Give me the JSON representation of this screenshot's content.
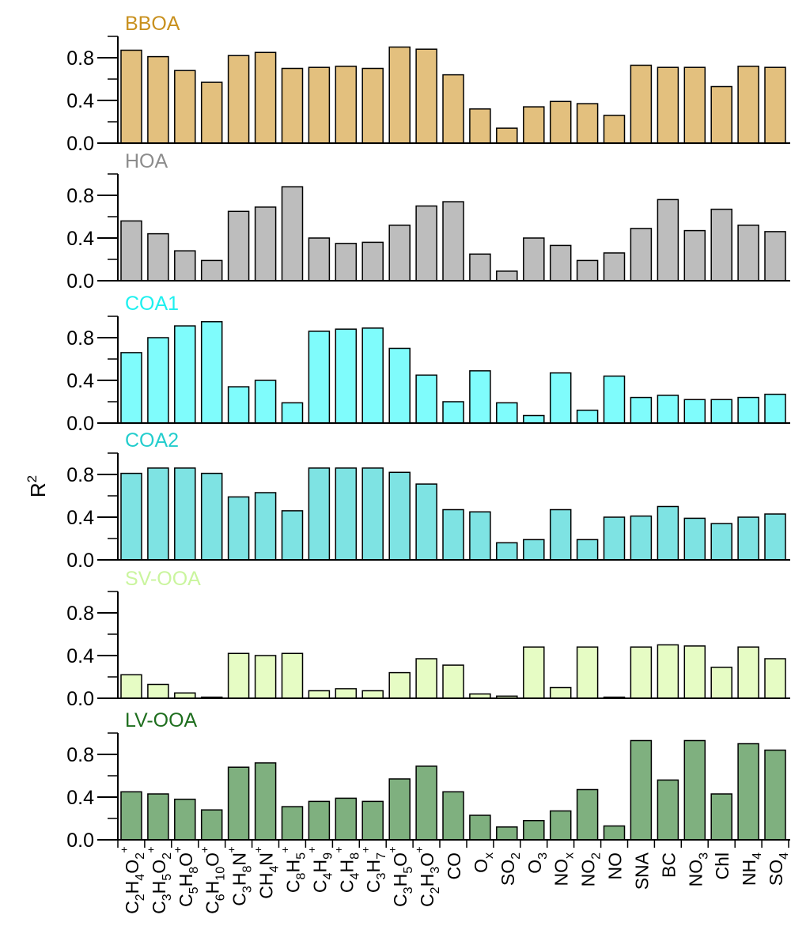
{
  "chart_data": {
    "type": "bar",
    "ylabel": "R",
    "ylabel_sup": "2",
    "ylim": [
      0,
      1
    ],
    "yticks": [
      "0.0",
      "0.4",
      "0.8"
    ],
    "categories": [
      {
        "parts": [
          [
            "n",
            "C"
          ],
          [
            "s",
            "2"
          ],
          [
            "n",
            "H"
          ],
          [
            "s",
            "4"
          ],
          [
            "n",
            "O"
          ],
          [
            "s",
            "2"
          ]
        ],
        "sup": "+"
      },
      {
        "parts": [
          [
            "n",
            "C"
          ],
          [
            "s",
            "3"
          ],
          [
            "n",
            "H"
          ],
          [
            "s",
            "5"
          ],
          [
            "n",
            "O"
          ],
          [
            "s",
            "2"
          ]
        ],
        "sup": "+"
      },
      {
        "parts": [
          [
            "n",
            "C"
          ],
          [
            "s",
            "5"
          ],
          [
            "n",
            "H"
          ],
          [
            "s",
            "8"
          ],
          [
            "n",
            "O"
          ]
        ],
        "sup": "+"
      },
      {
        "parts": [
          [
            "n",
            "C"
          ],
          [
            "s",
            "6"
          ],
          [
            "n",
            "H"
          ],
          [
            "s",
            "10"
          ],
          [
            "n",
            "O"
          ]
        ],
        "sup": "+"
      },
      {
        "parts": [
          [
            "n",
            "C"
          ],
          [
            "s",
            "3"
          ],
          [
            "n",
            "H"
          ],
          [
            "s",
            "8"
          ],
          [
            "n",
            "N"
          ]
        ],
        "sup": "+"
      },
      {
        "parts": [
          [
            "n",
            "CH"
          ],
          [
            "s",
            "4"
          ],
          [
            "n",
            "N"
          ]
        ],
        "sup": "+"
      },
      {
        "parts": [
          [
            "n",
            "C"
          ],
          [
            "s",
            "8"
          ],
          [
            "n",
            "H"
          ],
          [
            "s",
            "5"
          ]
        ],
        "sup": "+"
      },
      {
        "parts": [
          [
            "n",
            "C"
          ],
          [
            "s",
            "4"
          ],
          [
            "n",
            "H"
          ],
          [
            "s",
            "9"
          ]
        ],
        "sup": "+"
      },
      {
        "parts": [
          [
            "n",
            "C"
          ],
          [
            "s",
            "4"
          ],
          [
            "n",
            "H"
          ],
          [
            "s",
            "8"
          ]
        ],
        "sup": "+"
      },
      {
        "parts": [
          [
            "n",
            "C"
          ],
          [
            "s",
            "3"
          ],
          [
            "n",
            "H"
          ],
          [
            "s",
            "7"
          ]
        ],
        "sup": "+"
      },
      {
        "parts": [
          [
            "n",
            "C"
          ],
          [
            "s",
            "3"
          ],
          [
            "n",
            "H"
          ],
          [
            "s",
            "5"
          ],
          [
            "n",
            "O"
          ]
        ],
        "sup": "+"
      },
      {
        "parts": [
          [
            "n",
            "C"
          ],
          [
            "s",
            "2"
          ],
          [
            "n",
            "H"
          ],
          [
            "s",
            "3"
          ],
          [
            "n",
            "O"
          ]
        ],
        "sup": "+"
      },
      {
        "parts": [
          [
            "n",
            "CO"
          ]
        ],
        "sup": ""
      },
      {
        "parts": [
          [
            "n",
            "O"
          ],
          [
            "s",
            "x"
          ]
        ],
        "sup": ""
      },
      {
        "parts": [
          [
            "n",
            "SO"
          ],
          [
            "s",
            "2"
          ]
        ],
        "sup": ""
      },
      {
        "parts": [
          [
            "n",
            "O"
          ],
          [
            "s",
            "3"
          ]
        ],
        "sup": ""
      },
      {
        "parts": [
          [
            "n",
            "NO"
          ],
          [
            "s",
            "x"
          ]
        ],
        "sup": ""
      },
      {
        "parts": [
          [
            "n",
            "NO"
          ],
          [
            "s",
            "2"
          ]
        ],
        "sup": ""
      },
      {
        "parts": [
          [
            "n",
            "NO"
          ]
        ],
        "sup": ""
      },
      {
        "parts": [
          [
            "n",
            "SNA"
          ]
        ],
        "sup": ""
      },
      {
        "parts": [
          [
            "n",
            "BC"
          ]
        ],
        "sup": ""
      },
      {
        "parts": [
          [
            "n",
            "NO"
          ],
          [
            "s",
            "3"
          ]
        ],
        "sup": ""
      },
      {
        "parts": [
          [
            "n",
            "Chl"
          ]
        ],
        "sup": ""
      },
      {
        "parts": [
          [
            "n",
            "NH"
          ],
          [
            "s",
            "4"
          ]
        ],
        "sup": ""
      },
      {
        "parts": [
          [
            "n",
            "SO"
          ],
          [
            "s",
            "4"
          ]
        ],
        "sup": ""
      }
    ],
    "panels": [
      {
        "name": "BBOA",
        "label_color": "#c8901e",
        "fill": "#e3c07e",
        "values": [
          0.87,
          0.81,
          0.68,
          0.57,
          0.82,
          0.85,
          0.7,
          0.71,
          0.72,
          0.7,
          0.9,
          0.88,
          0.64,
          0.32,
          0.14,
          0.34,
          0.39,
          0.37,
          0.26,
          0.73,
          0.71,
          0.71,
          0.53,
          0.72,
          0.71
        ]
      },
      {
        "name": "HOA",
        "label_color": "#8c8c8c",
        "fill": "#bdbdbd",
        "values": [
          0.56,
          0.44,
          0.28,
          0.19,
          0.65,
          0.69,
          0.88,
          0.4,
          0.35,
          0.36,
          0.52,
          0.7,
          0.74,
          0.25,
          0.09,
          0.4,
          0.33,
          0.19,
          0.26,
          0.49,
          0.76,
          0.47,
          0.67,
          0.52,
          0.46
        ]
      },
      {
        "name": "COA1",
        "label_color": "#1ef0ef",
        "fill": "#7ffcfc",
        "values": [
          0.66,
          0.8,
          0.91,
          0.95,
          0.34,
          0.4,
          0.19,
          0.86,
          0.88,
          0.89,
          0.7,
          0.45,
          0.2,
          0.49,
          0.19,
          0.07,
          0.47,
          0.12,
          0.44,
          0.24,
          0.26,
          0.22,
          0.22,
          0.24,
          0.27
        ]
      },
      {
        "name": "COA2",
        "label_color": "#23cdcd",
        "fill": "#7ee3e3",
        "values": [
          0.81,
          0.86,
          0.86,
          0.81,
          0.59,
          0.63,
          0.46,
          0.86,
          0.86,
          0.86,
          0.82,
          0.71,
          0.47,
          0.45,
          0.16,
          0.19,
          0.47,
          0.19,
          0.4,
          0.41,
          0.5,
          0.39,
          0.34,
          0.4,
          0.43
        ]
      },
      {
        "name": "SV-OOA",
        "label_color": "#caf59e",
        "fill": "#e6fcc4",
        "values": [
          0.22,
          0.13,
          0.05,
          0.01,
          0.42,
          0.4,
          0.42,
          0.07,
          0.09,
          0.07,
          0.24,
          0.37,
          0.31,
          0.04,
          0.02,
          0.48,
          0.1,
          0.48,
          0.01,
          0.48,
          0.5,
          0.49,
          0.29,
          0.48,
          0.37
        ]
      },
      {
        "name": "LV-OOA",
        "label_color": "#1e6e1e",
        "fill": "#7fb07f",
        "values": [
          0.45,
          0.43,
          0.38,
          0.28,
          0.68,
          0.72,
          0.31,
          0.36,
          0.39,
          0.36,
          0.57,
          0.69,
          0.45,
          0.23,
          0.12,
          0.18,
          0.27,
          0.47,
          0.13,
          0.93,
          0.56,
          0.93,
          0.43,
          0.9,
          0.84
        ]
      }
    ]
  }
}
